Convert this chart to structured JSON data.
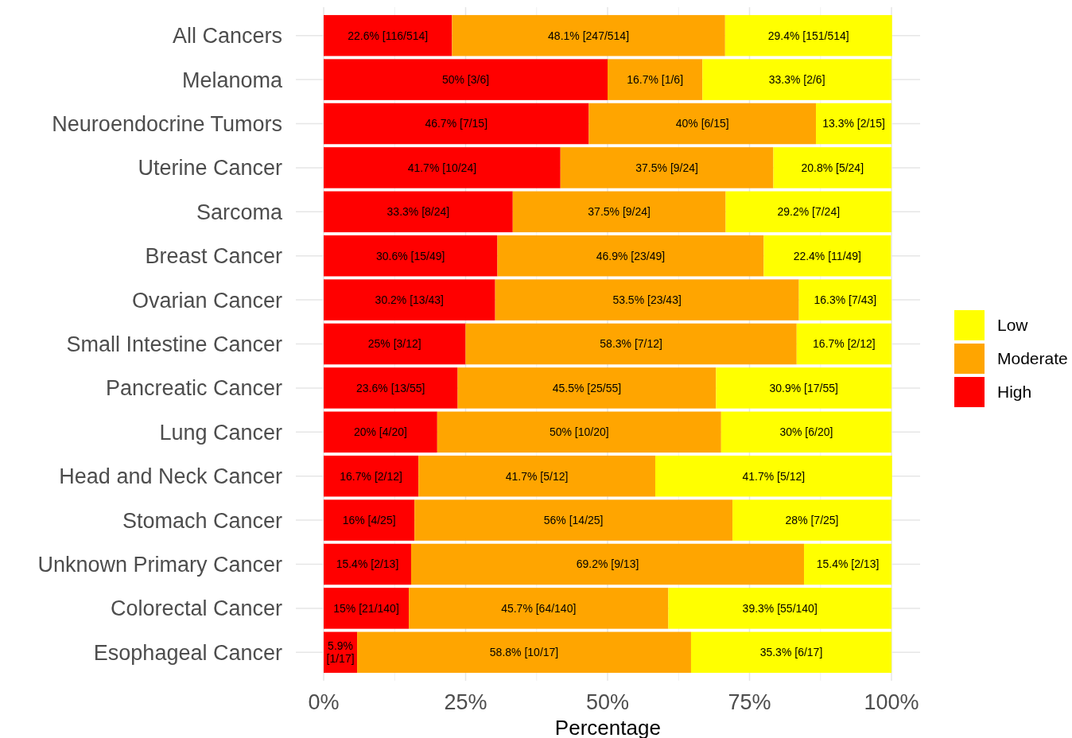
{
  "chart_data": {
    "type": "bar",
    "orientation": "horizontal",
    "stacked": true,
    "xlabel": "Percentage",
    "categories": [
      "All Cancers",
      "Melanoma",
      "Neuroendocrine Tumors",
      "Uterine Cancer",
      "Sarcoma",
      "Breast Cancer",
      "Ovarian Cancer",
      "Small Intestine Cancer",
      "Pancreatic Cancer",
      "Lung Cancer",
      "Head and Neck Cancer",
      "Stomach Cancer",
      "Unknown Primary Cancer",
      "Colorectal Cancer",
      "Esophageal Cancer"
    ],
    "series": [
      {
        "name": "High",
        "color": "#ff0000",
        "values": [
          22.6,
          50,
          46.7,
          41.7,
          33.3,
          30.6,
          30.2,
          25,
          23.6,
          20,
          16.7,
          16,
          15.4,
          15,
          5.9
        ],
        "value_labels": [
          "22.6% [116/514]",
          "50% [3/6]",
          "46.7% [7/15]",
          "41.7% [10/24]",
          "33.3% [8/24]",
          "30.6% [15/49]",
          "30.2% [13/43]",
          "25% [3/12]",
          "23.6% [13/55]",
          "20% [4/20]",
          "16.7% [2/12]",
          "16% [4/25]",
          "15.4% [2/13]",
          "15% [21/140]",
          "5.9% [1/17]"
        ]
      },
      {
        "name": "Moderate",
        "color": "#ffa500",
        "values": [
          48.1,
          16.7,
          40,
          37.5,
          37.5,
          46.9,
          53.5,
          58.3,
          45.5,
          50,
          41.7,
          56,
          69.2,
          45.7,
          58.8
        ],
        "value_labels": [
          "48.1% [247/514]",
          "16.7% [1/6]",
          "40% [6/15]",
          "37.5% [9/24]",
          "37.5% [9/24]",
          "46.9% [23/49]",
          "53.5% [23/43]",
          "58.3% [7/12]",
          "45.5% [25/55]",
          "50% [10/20]",
          "41.7% [5/12]",
          "56% [14/25]",
          "69.2% [9/13]",
          "45.7% [64/140]",
          "58.8% [10/17]"
        ]
      },
      {
        "name": "Low",
        "color": "#ffff00",
        "values": [
          29.4,
          33.3,
          13.3,
          20.8,
          29.2,
          22.4,
          16.3,
          16.7,
          30.9,
          30,
          41.7,
          28,
          15.4,
          39.3,
          35.3
        ],
        "value_labels": [
          "29.4% [151/514]",
          "33.3% [2/6]",
          "13.3% [2/15]",
          "20.8% [5/24]",
          "29.2% [7/24]",
          "22.4% [11/49]",
          "16.3% [7/43]",
          "16.7% [2/12]",
          "30.9% [17/55]",
          "30% [6/20]",
          "41.7% [5/12]",
          "28% [7/25]",
          "15.4% [2/13]",
          "39.3% [55/140]",
          "35.3% [6/17]"
        ]
      }
    ],
    "xlim": [
      0,
      100.1
    ],
    "xticks": [
      {
        "value": 0,
        "label": "0%"
      },
      {
        "value": 25,
        "label": "25%"
      },
      {
        "value": 50,
        "label": "50%"
      },
      {
        "value": 75,
        "label": "75%"
      },
      {
        "value": 100,
        "label": "100%"
      }
    ],
    "grid": true,
    "legend": "right"
  }
}
